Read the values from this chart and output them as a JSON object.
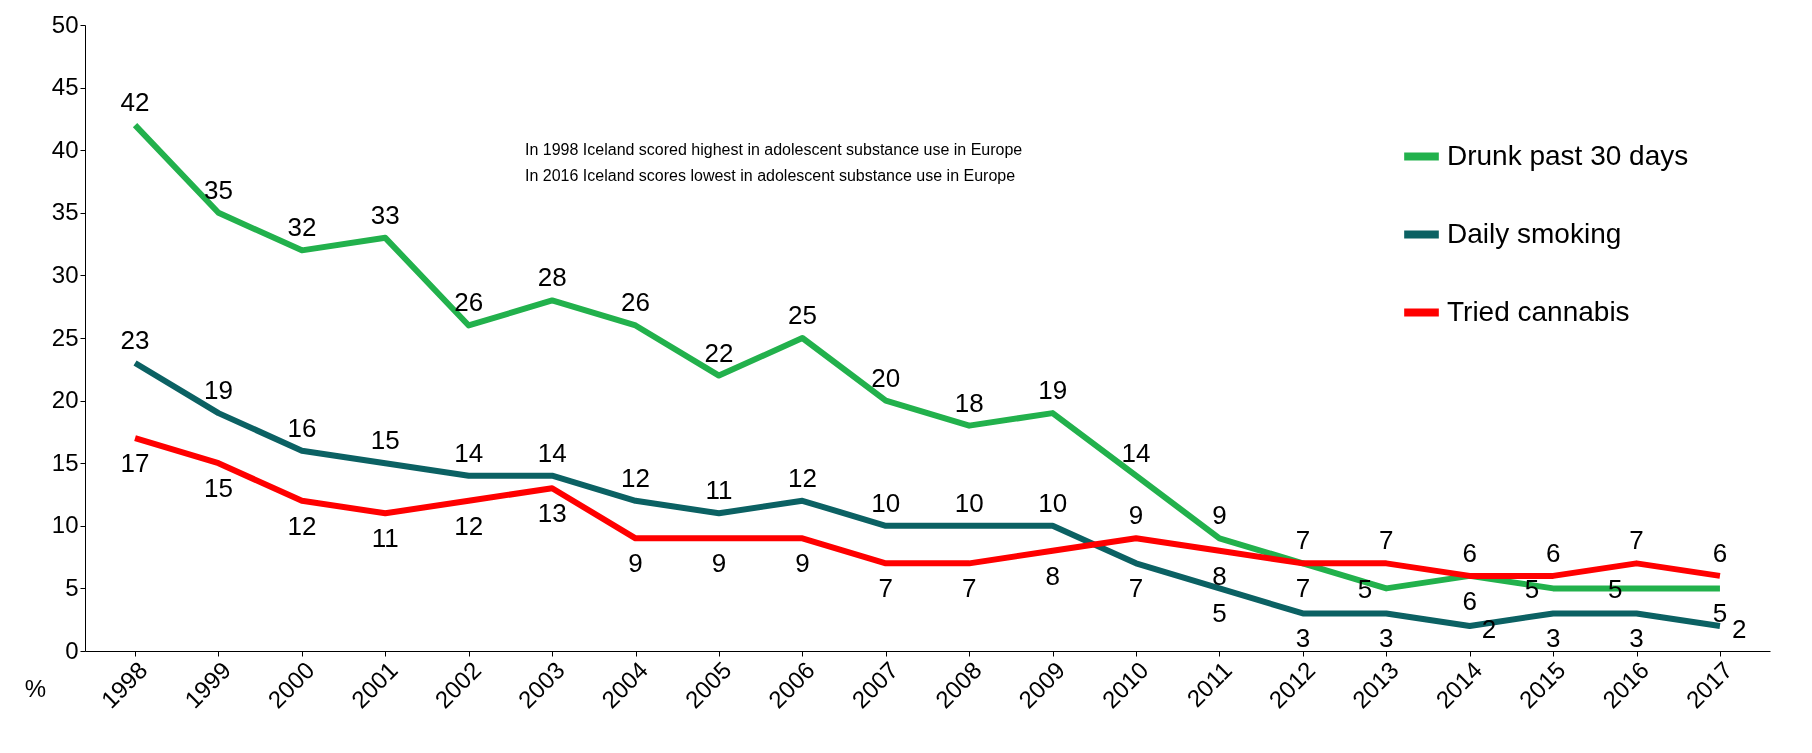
{
  "chart_data": {
    "type": "line",
    "ylabel": "%",
    "categories": [
      "1998",
      "1999",
      "2000",
      "2001",
      "2002",
      "2003",
      "2004",
      "2005",
      "2006",
      "2007",
      "2008",
      "2009",
      "2010",
      "2011",
      "2012",
      "2013",
      "2014",
      "2015",
      "2016",
      "2017"
    ],
    "series": [
      {
        "name": "Drunk past 30 days",
        "color": "#22b14c",
        "values": [
          42,
          35,
          32,
          33,
          26,
          28,
          26,
          22,
          25,
          20,
          18,
          19,
          14,
          9,
          7,
          5,
          6,
          5,
          5,
          5
        ]
      },
      {
        "name": "Daily smoking",
        "color": "#0b6163",
        "values": [
          23,
          19,
          16,
          15,
          14,
          14,
          12,
          11,
          12,
          10,
          10,
          10,
          7,
          5,
          3,
          3,
          2,
          3,
          3,
          2
        ]
      },
      {
        "name": "Tried cannabis",
        "color": "#ff0000",
        "values": [
          17,
          15,
          12,
          11,
          12,
          13,
          9,
          9,
          9,
          7,
          7,
          8,
          9,
          8,
          7,
          7,
          6,
          6,
          7,
          6
        ]
      }
    ],
    "ylim": [
      0,
      50
    ],
    "yticks": [
      0,
      5,
      10,
      15,
      20,
      25,
      30,
      35,
      40,
      45,
      50
    ],
    "grid": false,
    "legend": "top right",
    "data_labels": true,
    "marker": "none",
    "line_style": "solid",
    "annotations": [
      "In 1998 Iceland scored highest in adolescent substance use in Europe",
      "In 2016 Iceland scores lowest in adolescent substance use in Europe"
    ]
  }
}
